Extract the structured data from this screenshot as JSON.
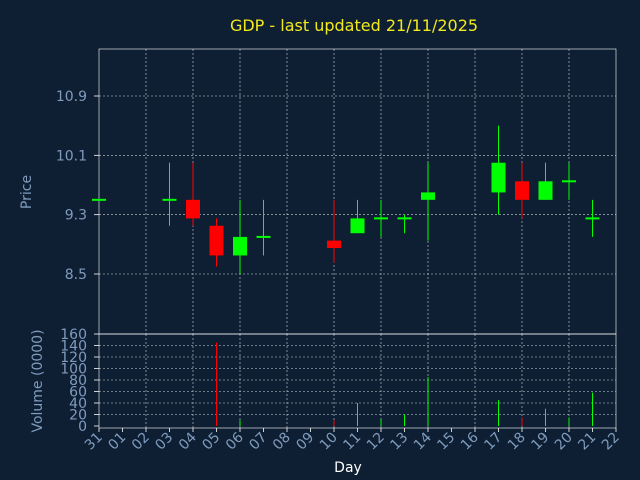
{
  "chart_data": {
    "type": "candlestick",
    "title": "GDP - last updated 21/11/2025",
    "xlabel": "Day",
    "x_ticks": [
      "31",
      "01",
      "02",
      "03",
      "04",
      "05",
      "06",
      "07",
      "08",
      "09",
      "10",
      "11",
      "12",
      "13",
      "14",
      "15",
      "16",
      "17",
      "18",
      "19",
      "20",
      "21",
      "22"
    ],
    "price_panel": {
      "ylabel": "Price",
      "y_ticks": [
        "8.5",
        "9.3",
        "10.1",
        "10.9"
      ],
      "ylim": [
        8.5,
        10.9
      ],
      "candles": [
        {
          "day": "31",
          "open": 9.5,
          "high": 9.5,
          "low": 9.5,
          "close": 9.5
        },
        {
          "day": "03",
          "open": 9.5,
          "high": 10.0,
          "low": 9.15,
          "close": 9.5
        },
        {
          "day": "04",
          "open": 9.5,
          "high": 10.0,
          "low": 9.15,
          "close": 9.25
        },
        {
          "day": "05",
          "open": 9.15,
          "high": 9.25,
          "low": 8.6,
          "close": 8.75
        },
        {
          "day": "06",
          "open": 8.75,
          "high": 9.5,
          "low": 8.5,
          "close": 9.0
        },
        {
          "day": "07",
          "open": 9.0,
          "high": 9.5,
          "low": 8.75,
          "close": 9.0
        },
        {
          "day": "10",
          "open": 8.95,
          "high": 9.5,
          "low": 8.65,
          "close": 8.85
        },
        {
          "day": "11",
          "open": 9.05,
          "high": 9.5,
          "low": 9.05,
          "close": 9.25
        },
        {
          "day": "12",
          "open": 9.25,
          "high": 9.5,
          "low": 9.0,
          "close": 9.25
        },
        {
          "day": "13",
          "open": 9.25,
          "high": 9.3,
          "low": 9.05,
          "close": 9.25
        },
        {
          "day": "14",
          "open": 9.5,
          "high": 10.0,
          "low": 8.95,
          "close": 9.6
        },
        {
          "day": "17",
          "open": 9.6,
          "high": 10.5,
          "low": 9.3,
          "close": 10.0
        },
        {
          "day": "18",
          "open": 9.75,
          "high": 10.0,
          "low": 9.25,
          "close": 9.5
        },
        {
          "day": "19",
          "open": 9.5,
          "high": 10.0,
          "low": 9.5,
          "close": 9.75
        },
        {
          "day": "20",
          "open": 9.75,
          "high": 10.0,
          "low": 9.5,
          "close": 9.75
        },
        {
          "day": "21",
          "open": 9.25,
          "high": 9.5,
          "low": 9.0,
          "close": 9.25
        }
      ]
    },
    "volume_panel": {
      "ylabel": "Volume (0000)",
      "y_ticks": [
        "0",
        "20",
        "40",
        "60",
        "80",
        "100",
        "120",
        "140",
        "160"
      ],
      "ylim": [
        0,
        160
      ],
      "bars": [
        {
          "day": "05",
          "value": 145,
          "direction": "down"
        },
        {
          "day": "06",
          "value": 10,
          "direction": "up"
        },
        {
          "day": "10",
          "value": 10,
          "direction": "down"
        },
        {
          "day": "11",
          "value": 40,
          "direction": "up"
        },
        {
          "day": "12",
          "value": 12,
          "direction": "up"
        },
        {
          "day": "13",
          "value": 20,
          "direction": "up"
        },
        {
          "day": "14",
          "value": 85,
          "direction": "up"
        },
        {
          "day": "17",
          "value": 45,
          "direction": "up"
        },
        {
          "day": "18",
          "value": 15,
          "direction": "down"
        },
        {
          "day": "19",
          "value": 30,
          "direction": "up"
        },
        {
          "day": "20",
          "value": 15,
          "direction": "up"
        },
        {
          "day": "21",
          "value": 58,
          "direction": "up"
        }
      ]
    },
    "colors": {
      "background": "#0f1f33",
      "up": "#00ff00",
      "down": "#ff0000",
      "axis_text": "#7f9bbd",
      "title": "#f2ea1c",
      "xlabel": "#ffffff",
      "grid": "#ffffff"
    },
    "grid": true
  }
}
